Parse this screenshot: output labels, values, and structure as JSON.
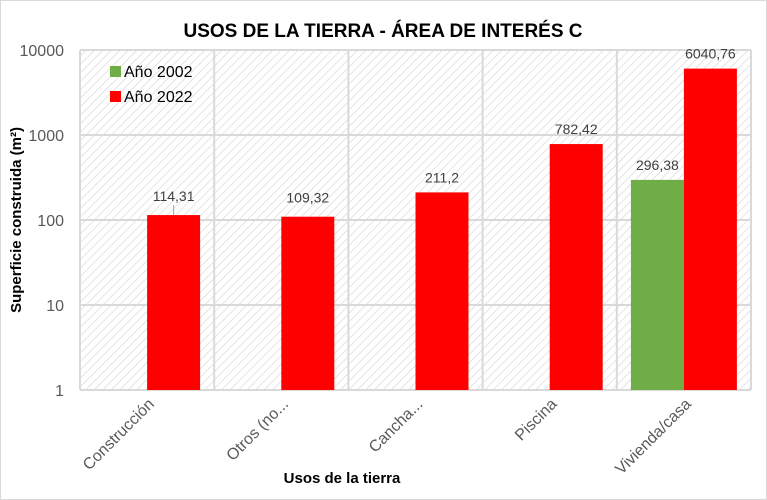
{
  "chart_data": {
    "type": "bar",
    "title": "USOS DE LA TIERRA - ÁREA DE INTERÉS C",
    "xlabel": "Usos de la tierra",
    "ylabel": "Superficie construida (m²)",
    "yscale": "log",
    "ylim": [
      1,
      10000
    ],
    "yticks": [
      "1",
      "10",
      "100",
      "1000",
      "10000"
    ],
    "grid": true,
    "legend_position": "top-left",
    "categories": [
      "Construcción",
      "Otros (no...",
      "Cancha...",
      "Piscina",
      "Vivienda/casa"
    ],
    "series": [
      {
        "name": "Año 2002",
        "color": "#70ad47",
        "values": [
          null,
          null,
          null,
          null,
          296.38
        ],
        "labels": [
          "",
          "",
          "",
          "",
          "296,38"
        ]
      },
      {
        "name": "Año 2022",
        "color": "#ff0000",
        "values": [
          114.31,
          109.32,
          211.2,
          782.42,
          6040.76
        ],
        "labels": [
          "114,31",
          "109,32",
          "211,2",
          "782,42",
          "6040,76"
        ]
      }
    ]
  }
}
